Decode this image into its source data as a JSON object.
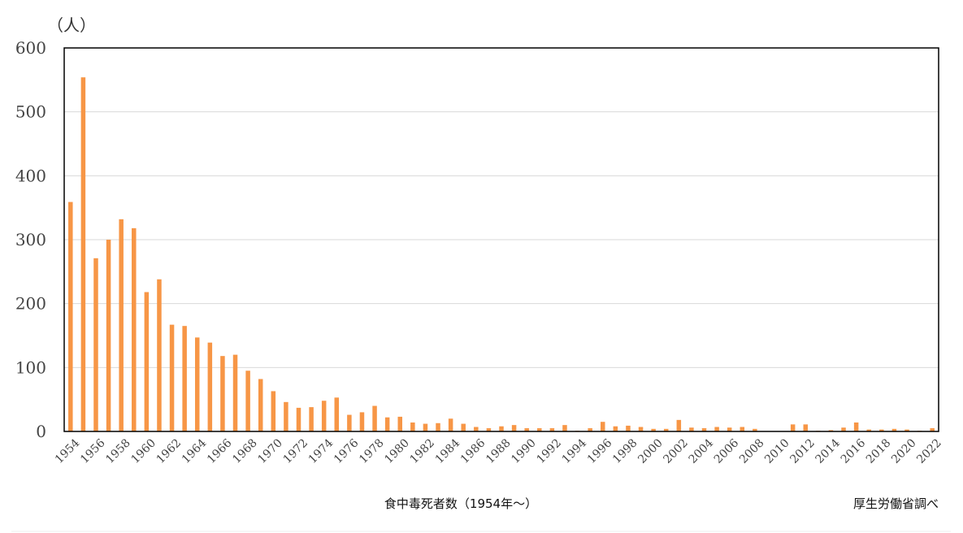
{
  "chart_data": {
    "type": "bar",
    "title": "",
    "ylabel": "（人）",
    "xlabel": "食中毒死者数（1954年～）",
    "source": "厚生労働省調べ",
    "ylim": [
      0,
      600
    ],
    "yticks": [
      0,
      100,
      200,
      300,
      400,
      500,
      600
    ],
    "grid": true,
    "bar_color": "#f79646",
    "categories": [
      "1954",
      "1955",
      "1956",
      "1957",
      "1958",
      "1959",
      "1960",
      "1961",
      "1962",
      "1963",
      "1964",
      "1965",
      "1966",
      "1967",
      "1968",
      "1969",
      "1970",
      "1971",
      "1972",
      "1973",
      "1974",
      "1975",
      "1976",
      "1977",
      "1978",
      "1979",
      "1980",
      "1981",
      "1982",
      "1983",
      "1984",
      "1985",
      "1986",
      "1987",
      "1988",
      "1989",
      "1990",
      "1991",
      "1992",
      "1993",
      "1994",
      "1995",
      "1996",
      "1997",
      "1998",
      "1999",
      "2000",
      "2001",
      "2002",
      "2003",
      "2004",
      "2005",
      "2006",
      "2007",
      "2008",
      "2009",
      "2010",
      "2011",
      "2012",
      "2013",
      "2014",
      "2015",
      "2016",
      "2017",
      "2018",
      "2019",
      "2020",
      "2021",
      "2022"
    ],
    "tick_labels": [
      "1954",
      "1956",
      "1958",
      "1960",
      "1962",
      "1964",
      "1966",
      "1968",
      "1970",
      "1972",
      "1974",
      "1976",
      "1978",
      "1980",
      "1982",
      "1984",
      "1986",
      "1988",
      "1990",
      "1992",
      "1994",
      "1996",
      "1998",
      "2000",
      "2002",
      "2004",
      "2006",
      "2008",
      "2010",
      "2012",
      "2014",
      "2016",
      "2018",
      "2020",
      "2022"
    ],
    "values": [
      359,
      554,
      271,
      300,
      332,
      318,
      218,
      238,
      167,
      165,
      147,
      139,
      118,
      120,
      95,
      82,
      63,
      46,
      37,
      38,
      48,
      53,
      26,
      30,
      40,
      22,
      23,
      14,
      12,
      13,
      20,
      12,
      7,
      5,
      8,
      10,
      5,
      5,
      5,
      10,
      1,
      5,
      15,
      8,
      9,
      7,
      4,
      4,
      18,
      6,
      5,
      7,
      6,
      7,
      4,
      0,
      0,
      11,
      11,
      1,
      2,
      6,
      14,
      3,
      3,
      4,
      3,
      1,
      5
    ]
  }
}
